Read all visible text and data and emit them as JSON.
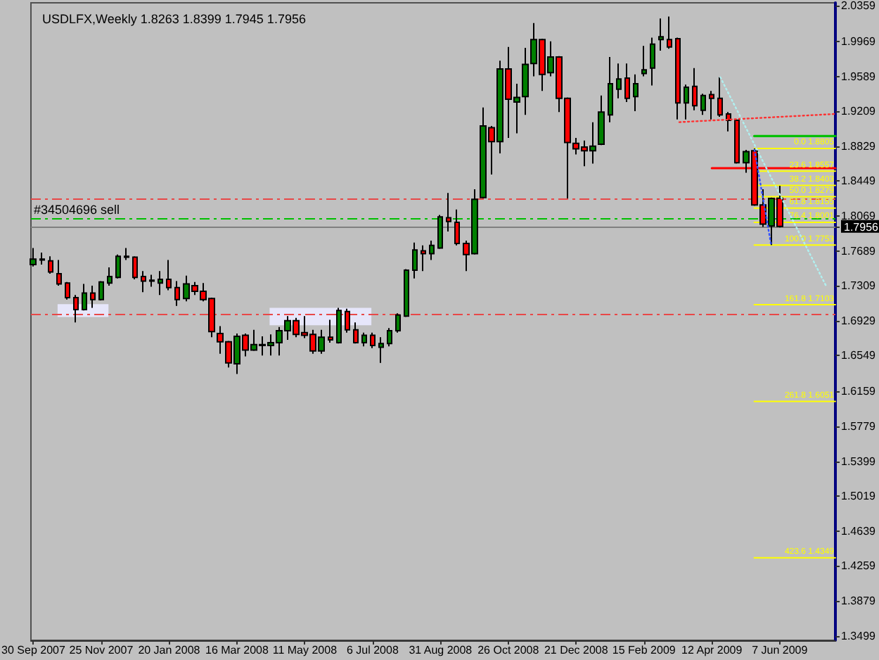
{
  "chart_data": {
    "type": "candlestick",
    "title": "USDLFX,Weekly 1.8263 1.8399 1.7945 1.7956",
    "x": [
      "2007-09-30",
      "2007-10-07",
      "2007-10-14",
      "2007-10-21",
      "2007-10-28",
      "2007-11-04",
      "2007-11-11",
      "2007-11-18",
      "2007-11-25",
      "2007-12-02",
      "2007-12-09",
      "2007-12-16",
      "2007-12-23",
      "2007-12-30",
      "2008-01-06",
      "2008-01-13",
      "2008-01-20",
      "2008-01-27",
      "2008-02-03",
      "2008-02-10",
      "2008-02-17",
      "2008-02-24",
      "2008-03-02",
      "2008-03-09",
      "2008-03-16",
      "2008-03-23",
      "2008-03-30",
      "2008-04-06",
      "2008-04-13",
      "2008-04-20",
      "2008-04-27",
      "2008-05-04",
      "2008-05-11",
      "2008-05-18",
      "2008-05-25",
      "2008-06-01",
      "2008-06-08",
      "2008-06-15",
      "2008-06-22",
      "2008-06-29",
      "2008-07-06",
      "2008-07-13",
      "2008-07-20",
      "2008-07-27",
      "2008-08-03",
      "2008-08-10",
      "2008-08-17",
      "2008-08-24",
      "2008-08-31",
      "2008-09-07",
      "2008-09-14",
      "2008-09-21",
      "2008-09-28",
      "2008-10-05",
      "2008-10-12",
      "2008-10-19",
      "2008-10-26",
      "2008-11-02",
      "2008-11-09",
      "2008-11-16",
      "2008-11-23",
      "2008-11-30",
      "2008-12-07",
      "2008-12-14",
      "2008-12-21",
      "2008-12-28",
      "2009-01-04",
      "2009-01-11",
      "2009-01-18",
      "2009-01-25",
      "2009-02-01",
      "2009-02-08",
      "2009-02-15",
      "2009-02-22",
      "2009-03-01",
      "2009-03-08",
      "2009-03-15",
      "2009-03-22",
      "2009-03-29",
      "2009-04-05",
      "2009-04-12",
      "2009-04-19",
      "2009-04-26",
      "2009-05-03",
      "2009-05-10",
      "2009-05-17",
      "2009-05-24",
      "2009-05-31",
      "2009-06-07"
    ],
    "ohlc": [
      [
        1.754,
        1.772,
        1.752,
        1.76
      ],
      [
        1.76,
        1.767,
        1.754,
        1.759
      ],
      [
        1.758,
        1.763,
        1.744,
        1.746
      ],
      [
        1.744,
        1.759,
        1.731,
        1.733
      ],
      [
        1.734,
        1.735,
        1.716,
        1.718
      ],
      [
        1.718,
        1.721,
        1.691,
        1.705
      ],
      [
        1.705,
        1.733,
        1.704,
        1.723
      ],
      [
        1.723,
        1.731,
        1.707,
        1.716
      ],
      [
        1.716,
        1.736,
        1.715,
        1.735
      ],
      [
        1.734,
        1.751,
        1.731,
        1.741
      ],
      [
        1.74,
        1.765,
        1.739,
        1.763
      ],
      [
        1.763,
        1.772,
        1.759,
        1.762
      ],
      [
        1.762,
        1.763,
        1.738,
        1.74
      ],
      [
        1.741,
        1.747,
        1.724,
        1.736
      ],
      [
        1.736,
        1.743,
        1.73,
        1.737
      ],
      [
        1.734,
        1.747,
        1.721,
        1.738
      ],
      [
        1.738,
        1.759,
        1.726,
        1.729
      ],
      [
        1.729,
        1.736,
        1.709,
        1.716
      ],
      [
        1.717,
        1.742,
        1.714,
        1.733
      ],
      [
        1.731,
        1.735,
        1.721,
        1.725
      ],
      [
        1.725,
        1.734,
        1.714,
        1.716
      ],
      [
        1.717,
        1.718,
        1.675,
        1.681
      ],
      [
        1.679,
        1.687,
        1.657,
        1.67
      ],
      [
        1.67,
        1.671,
        1.642,
        1.647
      ],
      [
        1.646,
        1.679,
        1.635,
        1.676
      ],
      [
        1.677,
        1.679,
        1.654,
        1.661
      ],
      [
        1.661,
        1.683,
        1.66,
        1.667
      ],
      [
        1.666,
        1.676,
        1.655,
        1.667
      ],
      [
        1.666,
        1.678,
        1.655,
        1.669
      ],
      [
        1.669,
        1.686,
        1.655,
        1.682
      ],
      [
        1.682,
        1.698,
        1.672,
        1.693
      ],
      [
        1.693,
        1.696,
        1.675,
        1.678
      ],
      [
        1.68,
        1.698,
        1.674,
        1.677
      ],
      [
        1.678,
        1.683,
        1.657,
        1.66
      ],
      [
        1.66,
        1.683,
        1.657,
        1.675
      ],
      [
        1.675,
        1.694,
        1.669,
        1.672
      ],
      [
        1.669,
        1.707,
        1.668,
        1.704
      ],
      [
        1.703,
        1.706,
        1.68,
        1.683
      ],
      [
        1.683,
        1.691,
        1.668,
        1.669
      ],
      [
        1.669,
        1.68,
        1.665,
        1.677
      ],
      [
        1.677,
        1.68,
        1.663,
        1.666
      ],
      [
        1.664,
        1.675,
        1.647,
        1.668
      ],
      [
        1.668,
        1.685,
        1.665,
        1.682
      ],
      [
        1.682,
        1.701,
        1.68,
        1.699
      ],
      [
        1.698,
        1.749,
        1.697,
        1.748
      ],
      [
        1.748,
        1.778,
        1.739,
        1.77
      ],
      [
        1.769,
        1.775,
        1.747,
        1.766
      ],
      [
        1.766,
        1.78,
        1.759,
        1.775
      ],
      [
        1.772,
        1.808,
        1.771,
        1.806
      ],
      [
        1.805,
        1.832,
        1.79,
        1.801
      ],
      [
        1.8,
        1.814,
        1.775,
        1.777
      ],
      [
        1.777,
        1.78,
        1.747,
        1.765
      ],
      [
        1.766,
        1.836,
        1.765,
        1.825
      ],
      [
        1.827,
        1.925,
        1.826,
        1.905
      ],
      [
        1.903,
        1.905,
        1.852,
        1.888
      ],
      [
        1.888,
        1.976,
        1.875,
        1.967
      ],
      [
        1.967,
        1.991,
        1.892,
        1.934
      ],
      [
        1.931,
        1.951,
        1.897,
        1.936
      ],
      [
        1.937,
        1.99,
        1.917,
        1.972
      ],
      [
        1.973,
        2.017,
        1.959,
        1.999
      ],
      [
        1.999,
        2.0,
        1.943,
        1.961
      ],
      [
        1.963,
        1.997,
        1.959,
        1.98
      ],
      [
        1.98,
        1.981,
        1.92,
        1.935
      ],
      [
        1.935,
        1.936,
        1.826,
        1.887
      ],
      [
        1.886,
        1.892,
        1.874,
        1.88
      ],
      [
        1.882,
        1.889,
        1.861,
        1.878
      ],
      [
        1.878,
        1.909,
        1.864,
        1.883
      ],
      [
        1.885,
        1.938,
        1.884,
        1.92
      ],
      [
        1.917,
        1.98,
        1.909,
        1.951
      ],
      [
        1.945,
        1.973,
        1.935,
        1.956
      ],
      [
        1.957,
        1.973,
        1.931,
        1.935
      ],
      [
        1.937,
        1.961,
        1.921,
        1.951
      ],
      [
        1.962,
        1.992,
        1.959,
        1.966
      ],
      [
        1.968,
        2.001,
        1.949,
        1.994
      ],
      [
        1.999,
        2.022,
        1.987,
        2.002
      ],
      [
        1.999,
        2.024,
        1.989,
        1.991
      ],
      [
        2.0,
        2.001,
        1.912,
        1.93
      ],
      [
        1.93,
        1.95,
        1.912,
        1.947
      ],
      [
        1.948,
        1.968,
        1.922,
        1.927
      ],
      [
        1.922,
        1.94,
        1.917,
        1.938
      ],
      [
        1.939,
        1.943,
        1.912,
        1.935
      ],
      [
        1.935,
        1.958,
        1.915,
        1.917
      ],
      [
        1.918,
        1.92,
        1.899,
        1.911
      ],
      [
        1.911,
        1.912,
        1.864,
        1.865
      ],
      [
        1.865,
        1.879,
        1.854,
        1.877
      ],
      [
        1.878,
        1.8805,
        1.818,
        1.819
      ],
      [
        1.819,
        1.836,
        1.795,
        1.798
      ],
      [
        1.796,
        1.827,
        1.7753,
        1.826
      ],
      [
        1.8263,
        1.8399,
        1.7945,
        1.7956
      ]
    ],
    "colors": [
      "#008000",
      "#ff0000",
      "#ff0000",
      "#ff0000",
      "#ff0000",
      "#ff0000",
      "#008000",
      "#ff0000",
      "#008000",
      "#008000",
      "#008000",
      "#ff0000",
      "#ff0000",
      "#ff0000",
      "#008000",
      "#008000",
      "#ff0000",
      "#ff0000",
      "#008000",
      "#ff0000",
      "#ff0000",
      "#ff0000",
      "#ff0000",
      "#ff0000",
      "#008000",
      "#ff0000",
      "#008000",
      "#008000",
      "#008000",
      "#008000",
      "#008000",
      "#ff0000",
      "#ff0000",
      "#ff0000",
      "#008000",
      "#ff0000",
      "#008000",
      "#ff0000",
      "#ff0000",
      "#008000",
      "#ff0000",
      "#008000",
      "#008000",
      "#008000",
      "#008000",
      "#008000",
      "#ff0000",
      "#008000",
      "#008000",
      "#ff0000",
      "#ff0000",
      "#ff0000",
      "#008000",
      "#008000",
      "#ff0000",
      "#008000",
      "#ff0000",
      "#008000",
      "#008000",
      "#008000",
      "#ff0000",
      "#008000",
      "#ff0000",
      "#ff0000",
      "#ff0000",
      "#ff0000",
      "#008000",
      "#008000",
      "#008000",
      "#008000",
      "#ff0000",
      "#008000",
      "#008000",
      "#008000",
      "#008000",
      "#ff0000",
      "#ff0000",
      "#008000",
      "#ff0000",
      "#008000",
      "#ff0000",
      "#ff0000",
      "#ff0000",
      "#ff0000",
      "#008000",
      "#ff0000",
      "#ff0000",
      "#008000",
      "#ff0000"
    ],
    "xlim": [
      "2007-09-28",
      "2009-07-23"
    ],
    "xticks": [
      {
        "value": "2007-09-30",
        "label": "30 Sep 2007"
      },
      {
        "value": "2007-11-25",
        "label": "25 Nov 2007"
      },
      {
        "value": "2008-01-20",
        "label": "20 Jan 2008"
      },
      {
        "value": "2008-03-16",
        "label": "16 Mar 2008"
      },
      {
        "value": "2008-05-11",
        "label": "11 May 2008"
      },
      {
        "value": "2008-07-06",
        "label": "6 Jul 2008"
      },
      {
        "value": "2008-08-31",
        "label": "31 Aug 2008"
      },
      {
        "value": "2008-10-26",
        "label": "26 Oct 2008"
      },
      {
        "value": "2008-12-21",
        "label": "21 Dec 2008"
      },
      {
        "value": "2009-02-15",
        "label": "15 Feb 2009"
      },
      {
        "value": "2009-04-12",
        "label": "12 Apr 2009"
      },
      {
        "value": "2009-06-07",
        "label": "7 Jun 2009"
      }
    ],
    "ylim": [
      1.345,
      2.039
    ],
    "yticks": [
      2.0359,
      1.9969,
      1.9589,
      1.9209,
      1.8829,
      1.8449,
      1.8069,
      1.7956,
      1.7689,
      1.7309,
      1.6929,
      1.6549,
      1.6159,
      1.5779,
      1.5399,
      1.5019,
      1.4639,
      1.4259,
      1.3879,
      1.3499
    ],
    "grid": false,
    "marker": "none",
    "ref_lines": [
      {
        "axis": "y",
        "value": 1.826,
        "color": "#e84848",
        "line_style": "dashed"
      },
      {
        "axis": "y",
        "value": 1.804,
        "label": "#34504696 sell",
        "color": "#00c000",
        "line_style": "dashed"
      },
      {
        "axis": "y",
        "value": 1.7956,
        "color": "#808080",
        "line_style": "solid"
      },
      {
        "axis": "y",
        "value": 1.7,
        "color": "#e84848",
        "line_style": "dashed"
      }
    ],
    "series": [
      {
        "type": "line",
        "color": "#e6e6fa",
        "x": [
          "2007-10-20",
          "2007-12-01"
        ],
        "values": [
          null,
          null
        ],
        "lower": [
          1.697,
          1.697
        ],
        "upper": [
          1.711,
          1.711
        ]
      },
      {
        "type": "line",
        "color": "#e6e6fa",
        "x": [
          "2008-04-12",
          "2008-07-05"
        ],
        "values": [
          null,
          null
        ],
        "lower": [
          1.688,
          1.688
        ],
        "upper": [
          1.707,
          1.707
        ]
      },
      {
        "type": "line",
        "color": "#ff3030",
        "line_style": "dotted",
        "x": [
          "2009-03-15",
          "2009-07-23"
        ],
        "values": [
          1.909,
          1.918
        ]
      },
      {
        "type": "line",
        "color": "#b0f0f0",
        "line_style": "dotted",
        "x": [
          "2009-04-19",
          "2009-07-16"
        ],
        "values": [
          1.958,
          1.729
        ]
      },
      {
        "type": "line",
        "color": "#3050ff",
        "line_style": "dotted",
        "x": [
          "2009-05-17",
          "2009-05-31"
        ],
        "values": [
          1.8805,
          1.7753
        ]
      },
      {
        "type": "line",
        "color": "#ff0000",
        "line_style": "solid",
        "x": [
          "2009-04-12",
          "2009-07-23"
        ],
        "values": [
          1.859,
          1.859
        ]
      },
      {
        "type": "line",
        "color": "#00c000",
        "line_style": "solid",
        "x": [
          "2009-05-17",
          "2009-07-23"
        ],
        "values": [
          1.894,
          1.894
        ]
      },
      {
        "type": "line",
        "name": "0.0 1.8805",
        "color": "#ffff00",
        "x": [
          "2009-05-17",
          "2009-07-23"
        ],
        "values": [
          1.8805,
          1.8805
        ]
      },
      {
        "type": "line",
        "name": "23.6 1.8557",
        "color": "#ffff00",
        "x": [
          "2009-05-17",
          "2009-07-23"
        ],
        "values": [
          1.8557,
          1.8557
        ]
      },
      {
        "type": "line",
        "name": "38.2 1.8403",
        "color": "#ffff00",
        "x": [
          "2009-05-17",
          "2009-07-23"
        ],
        "values": [
          1.8403,
          1.8403
        ]
      },
      {
        "type": "line",
        "name": "50.0 1.8279",
        "color": "#ffff00",
        "x": [
          "2009-05-17",
          "2009-07-23"
        ],
        "values": [
          1.8279,
          1.8279
        ]
      },
      {
        "type": "line",
        "name": "61.8 1.8155",
        "color": "#ffff00",
        "x": [
          "2009-05-17",
          "2009-07-23"
        ],
        "values": [
          1.8155,
          1.8155
        ]
      },
      {
        "type": "line",
        "name": "76.4 1.8001",
        "color": "#ffff00",
        "x": [
          "2009-05-17",
          "2009-07-23"
        ],
        "values": [
          1.8001,
          1.8001
        ]
      },
      {
        "type": "line",
        "name": "100.0 1.7753",
        "color": "#ffff00",
        "x": [
          "2009-05-17",
          "2009-07-23"
        ],
        "values": [
          1.7753,
          1.7753
        ]
      },
      {
        "type": "line",
        "name": "161.8 1.7103",
        "color": "#ffff00",
        "x": [
          "2009-05-17",
          "2009-07-23"
        ],
        "values": [
          1.7103,
          1.7103
        ]
      },
      {
        "type": "line",
        "name": "261.8 1.6051",
        "color": "#ffff00",
        "x": [
          "2009-05-17",
          "2009-07-23"
        ],
        "values": [
          1.6051,
          1.6051
        ]
      },
      {
        "type": "line",
        "name": "423.6 1.4349",
        "color": "#ffff00",
        "x": [
          "2009-05-17",
          "2009-07-23"
        ],
        "values": [
          1.4349,
          1.4349
        ]
      }
    ]
  }
}
